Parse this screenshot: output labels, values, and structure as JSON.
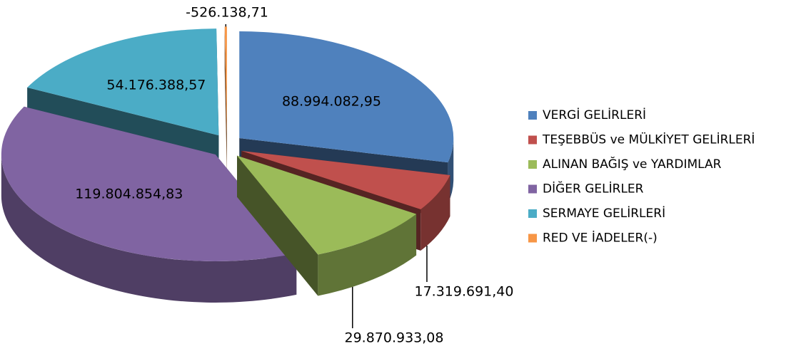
{
  "chart_data": {
    "type": "pie",
    "categories": [
      "VERGİ GELİRLERİ",
      "TEŞEBBÜS ve MÜLKİYET GELİRLERİ",
      "ALINAN BAĞIŞ ve YARDIMLAR",
      "DİĞER GELİRLER",
      "SERMAYE GELİRLERİ",
      "RED VE İADELER(-)"
    ],
    "values": [
      88994082.95,
      17319691.4,
      29870933.08,
      119804854.83,
      54176388.57,
      -526138.71
    ],
    "value_labels": [
      "88.994.082,95",
      "17.319.691,40",
      "29.870.933,08",
      "119.804.854,83",
      "54.176.388,57",
      "-526.138,71"
    ],
    "colors": [
      "#4f81bd",
      "#c0504d",
      "#9bbb59",
      "#8064a2",
      "#4bacc6",
      "#f79646"
    ],
    "legend": "right"
  }
}
